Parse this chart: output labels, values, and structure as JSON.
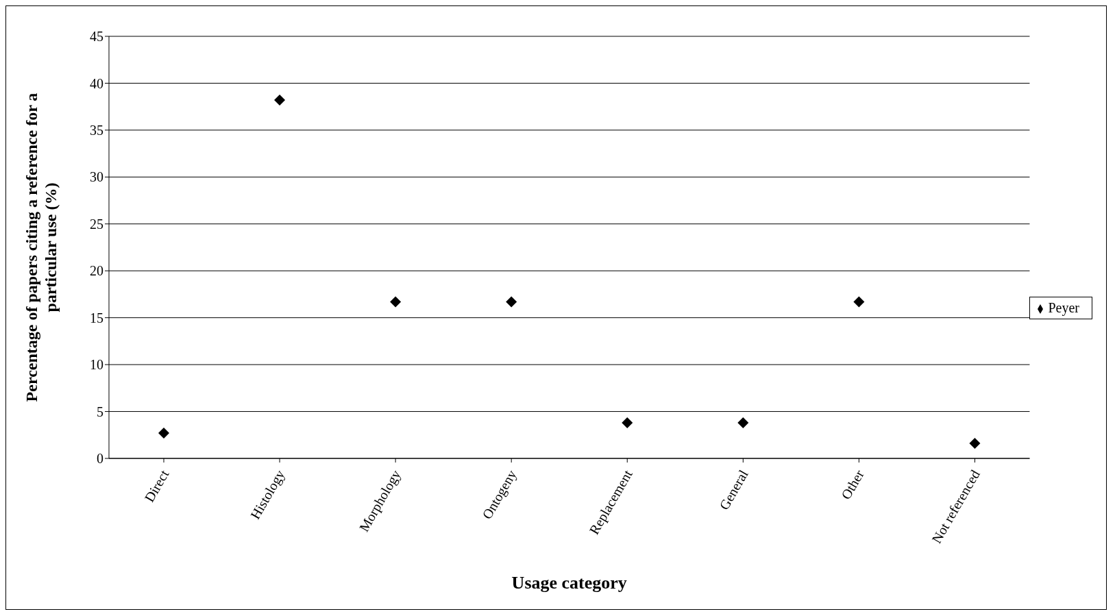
{
  "chart_data": {
    "type": "scatter",
    "xlabel": "Usage category",
    "ylabel": "Percentage of papers citing a reference for a particular use (%)",
    "categories": [
      "Direct",
      "Histology",
      "Morphology",
      "Ontogeny",
      "Replacement",
      "General",
      "Other",
      "Not referenced"
    ],
    "series": [
      {
        "name": "Peyer",
        "color": "#000000",
        "values": [
          2.7,
          38.2,
          16.7,
          16.7,
          3.8,
          3.8,
          16.7,
          1.6
        ]
      }
    ],
    "ylim": [
      0,
      45
    ],
    "yticks": [
      0,
      5,
      10,
      15,
      20,
      25,
      30,
      35,
      40,
      45
    ],
    "grid": "y",
    "legend": "right",
    "marker": "diamond"
  }
}
